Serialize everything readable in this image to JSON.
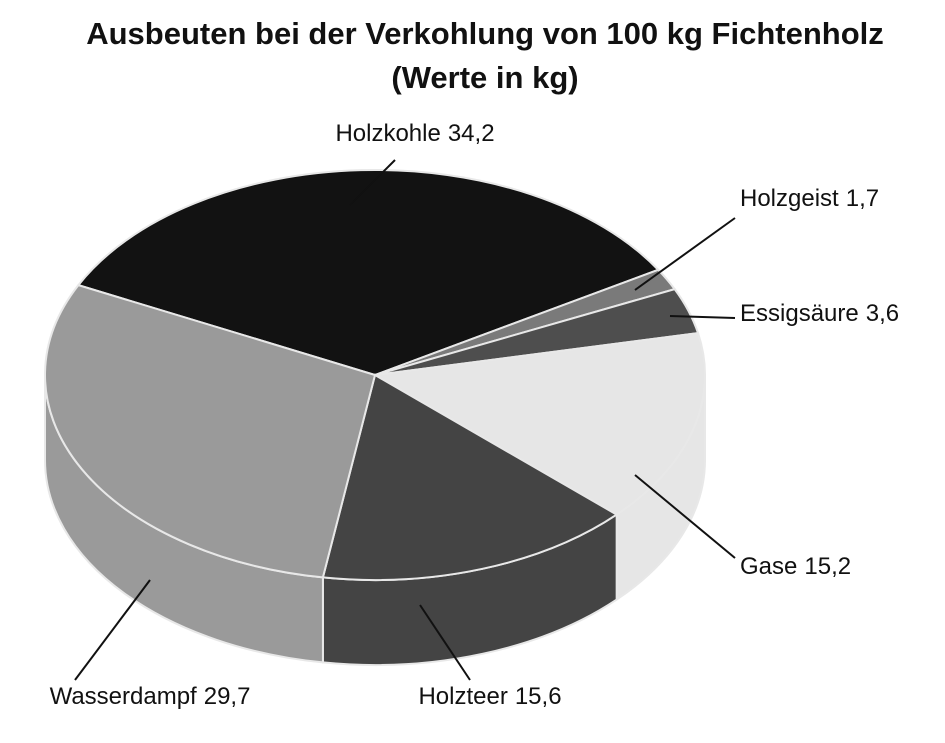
{
  "chart_data": {
    "type": "pie3d",
    "title": "Ausbeuten bei der Verkohlung von 100 kg Fichtenholz",
    "subtitle": "(Werte in kg)",
    "categories": [
      "Holzkohle",
      "Holzgeist",
      "Essigsäure",
      "Gase",
      "Holzteer",
      "Wasserdampf"
    ],
    "values": [
      34.2,
      1.7,
      3.6,
      15.2,
      15.6,
      29.7
    ],
    "value_labels": [
      "34,2",
      "1,7",
      "3,6",
      "15,2",
      "15,6",
      "29,7"
    ],
    "colors": [
      "#121212",
      "#7a7a7a",
      "#4e4e4e",
      "#e6e6e6",
      "#444444",
      "#9a9a9a"
    ]
  }
}
